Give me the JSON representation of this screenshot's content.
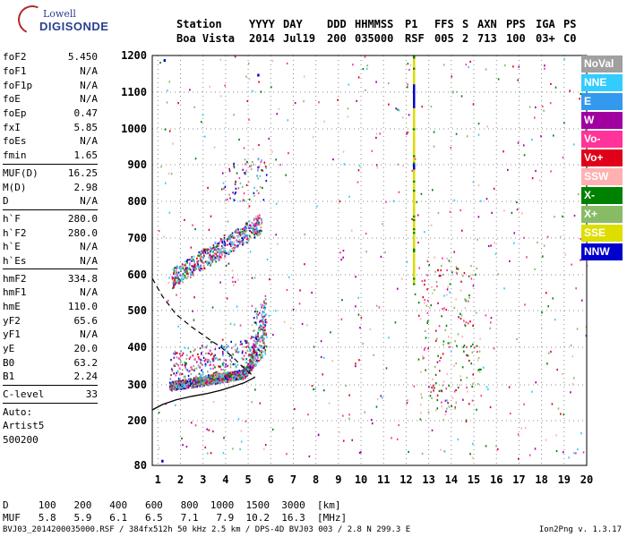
{
  "logo": {
    "line1": "Lowell",
    "line2": "DIGISONDE"
  },
  "header": {
    "row1": [
      "Station",
      "YYYY",
      "DAY",
      "DDD",
      "HHMMSS",
      "P1",
      "FFS",
      "S",
      "AXN",
      "PPS",
      "IGA",
      "PS"
    ],
    "row2": [
      "Boa Vista",
      "2014",
      "Jul19",
      "200",
      "035000",
      "RSF",
      "005",
      "2",
      "713",
      "100",
      "03+",
      "C0"
    ]
  },
  "params": {
    "group1": [
      {
        "name": "foF2",
        "value": "5.450"
      },
      {
        "name": "foF1",
        "value": "N/A"
      },
      {
        "name": "foF1p",
        "value": "N/A"
      },
      {
        "name": "foE",
        "value": "N/A"
      },
      {
        "name": "foEp",
        "value": "0.47"
      },
      {
        "name": "fxI",
        "value": "5.85"
      },
      {
        "name": "foEs",
        "value": "N/A"
      },
      {
        "name": "fmin",
        "value": "1.65"
      }
    ],
    "group2": [
      {
        "name": "MUF(D)",
        "value": "16.25"
      },
      {
        "name": "M(D)",
        "value": "2.98"
      },
      {
        "name": "D",
        "value": "N/A"
      }
    ],
    "group3": [
      {
        "name": "h`F",
        "value": "280.0"
      },
      {
        "name": "h`F2",
        "value": "280.0"
      },
      {
        "name": "h`E",
        "value": "N/A"
      },
      {
        "name": "h`Es",
        "value": "N/A"
      }
    ],
    "group4": [
      {
        "name": "hmF2",
        "value": "334.8"
      },
      {
        "name": "hmF1",
        "value": "N/A"
      },
      {
        "name": "hmE",
        "value": "110.0"
      },
      {
        "name": "yF2",
        "value": "65.6"
      },
      {
        "name": "yF1",
        "value": "N/A"
      },
      {
        "name": "yE",
        "value": "20.0"
      },
      {
        "name": "B0",
        "value": "63.2"
      },
      {
        "name": "B1",
        "value": "2.24"
      }
    ],
    "group5": [
      {
        "name": "C-level",
        "value": "33"
      }
    ],
    "auto": [
      "Auto:",
      "Artist5",
      "500200"
    ]
  },
  "legend": [
    {
      "label": "NoVal",
      "color": "#a0a0a0"
    },
    {
      "label": "NNE",
      "color": "#33ccff"
    },
    {
      "label": "E",
      "color": "#3399ee"
    },
    {
      "label": "W",
      "color": "#a000a0"
    },
    {
      "label": "Vo-",
      "color": "#ff3399"
    },
    {
      "label": "Vo+",
      "color": "#e0001a"
    },
    {
      "label": "SSW",
      "color": "#ffb0b0"
    },
    {
      "label": "X-",
      "color": "#008000"
    },
    {
      "label": "X+",
      "color": "#88bb66"
    },
    {
      "label": "SSE",
      "color": "#dddd00"
    },
    {
      "label": "NNW",
      "color": "#0000cc"
    }
  ],
  "chart_data": {
    "type": "scatter",
    "title": "",
    "xlabel": "",
    "ylabel": "",
    "xlim": [
      0.75,
      20
    ],
    "ylim": [
      80,
      1200
    ],
    "x_ticks": [
      "1",
      "2",
      "3",
      "4",
      "5",
      "6",
      "7",
      "8",
      "9",
      "10",
      "11",
      "12",
      "13",
      "14",
      "15",
      "16",
      "17",
      "18",
      "19",
      "20"
    ],
    "y_ticks": [
      "80",
      "200",
      "300",
      "400",
      "500",
      "600",
      "700",
      "800",
      "900",
      "1000",
      "1100",
      "1200"
    ],
    "y_tick_values": [
      80,
      200,
      300,
      400,
      500,
      600,
      700,
      800,
      900,
      1000,
      1100,
      1200
    ],
    "y_scale": "nonlinear",
    "grid": true,
    "series": [
      {
        "name": "F2 trace (main)",
        "approx_range_x": [
          1.5,
          5.8
        ],
        "approx_range_y": [
          280,
          560
        ]
      },
      {
        "name": "F2 trace (2-hop)",
        "approx_range_x": [
          1.6,
          5.6
        ],
        "approx_range_y": [
          570,
          800
        ]
      },
      {
        "name": "SSE vertical line",
        "x": 12.3,
        "approx_range_y": [
          580,
          1200
        ]
      }
    ],
    "profile_dashed": [
      [
        0.75,
        590
      ],
      [
        1.2,
        540
      ],
      [
        1.8,
        490
      ],
      [
        2.5,
        455
      ],
      [
        3.2,
        425
      ],
      [
        3.8,
        400
      ],
      [
        4.3,
        375
      ],
      [
        4.8,
        345
      ],
      [
        5.3,
        320
      ]
    ],
    "profile_solid": [
      [
        0.75,
        230
      ],
      [
        1.2,
        245
      ],
      [
        1.8,
        258
      ],
      [
        2.5,
        268
      ],
      [
        3.2,
        276
      ],
      [
        3.8,
        285
      ],
      [
        4.3,
        295
      ],
      [
        4.8,
        305
      ],
      [
        5.3,
        320
      ]
    ]
  },
  "bottom": {
    "d_row": "D     100   200   400   600   800  1000  1500  3000  [km]",
    "muf_row": "MUF   5.8   5.9   6.1   6.5   7.1   7.9  10.2  16.3  [MHz]",
    "footer_left": "BVJ03_2014200035000.RSF / 384fx512h 50 kHz 2.5 km / DPS-4D BVJ03 003 / 2.8 N 299.3 E",
    "footer_right": "Ion2Png v. 1.3.17"
  }
}
